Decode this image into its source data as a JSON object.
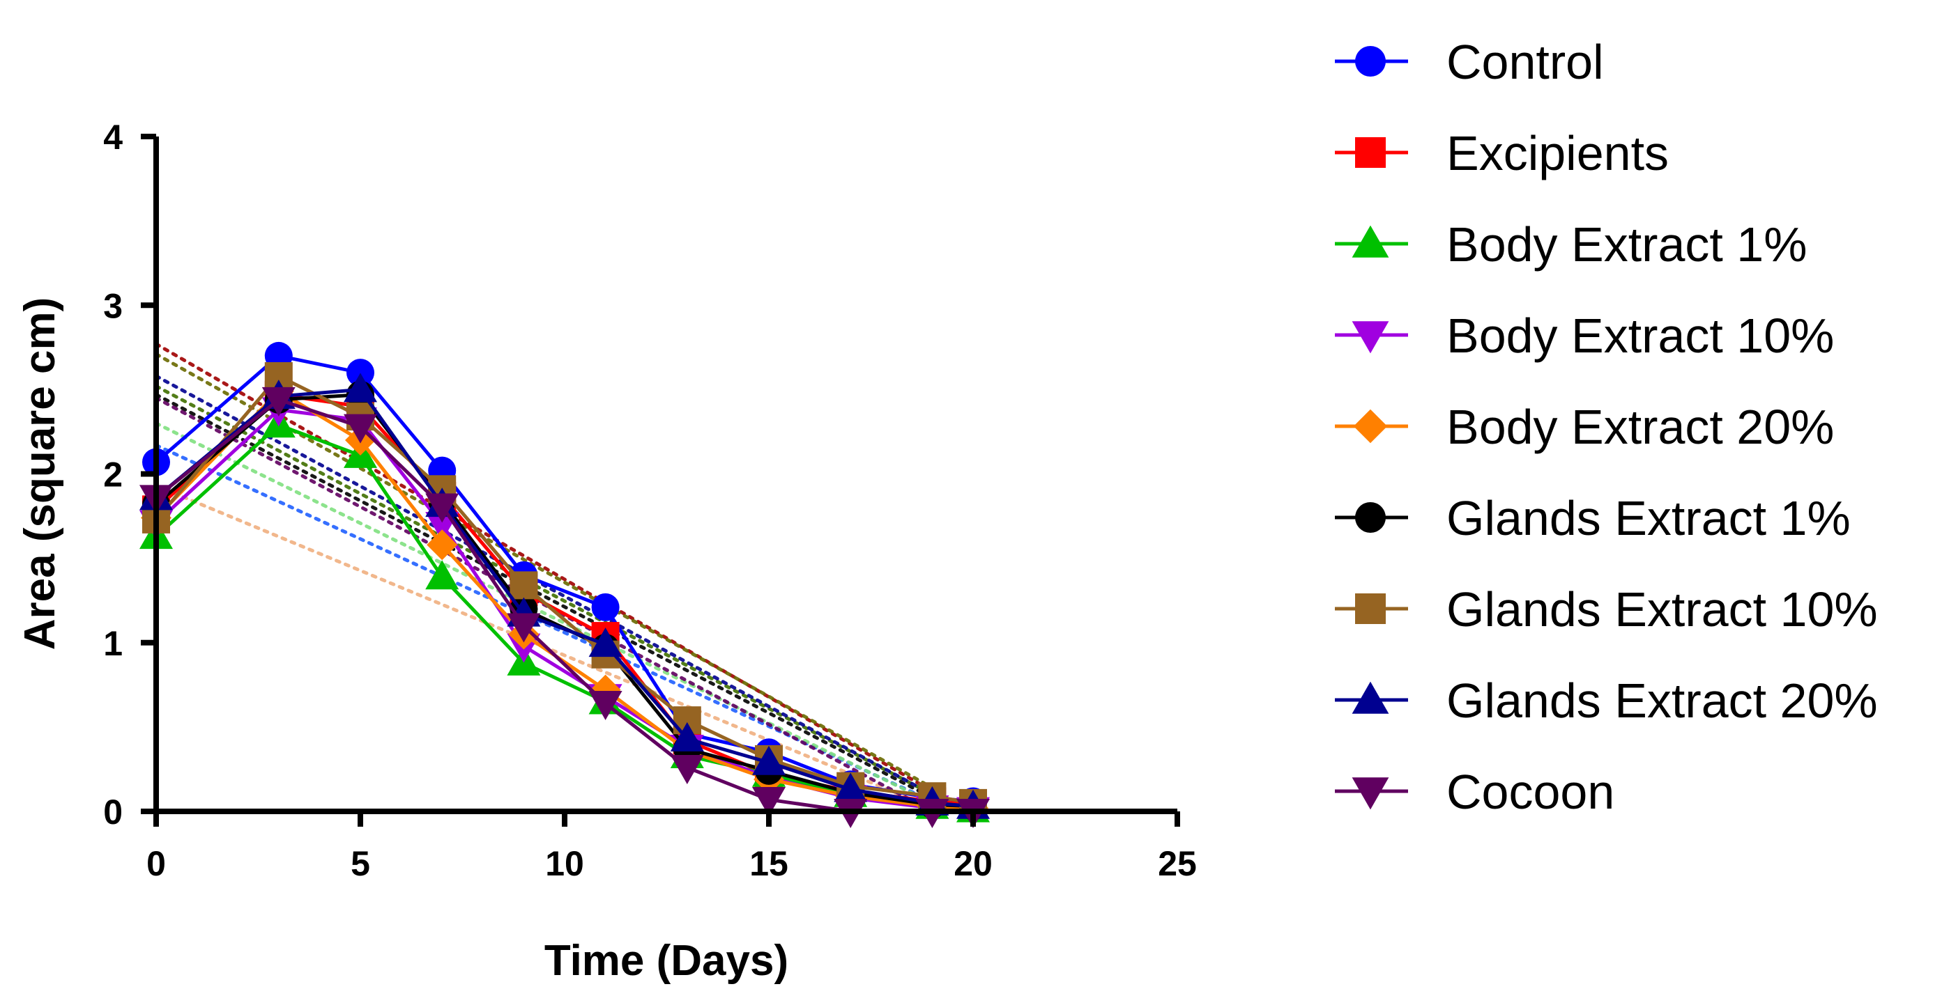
{
  "chart_data": {
    "type": "line",
    "title": "",
    "xlabel": "Time (Days)",
    "ylabel": "Area (square cm)",
    "xlim": [
      0,
      25
    ],
    "ylim": [
      0,
      4
    ],
    "xticks": [
      0,
      5,
      10,
      15,
      20,
      25
    ],
    "yticks": [
      0,
      1,
      2,
      3,
      4
    ],
    "grid": false,
    "legend_position": "right",
    "x": [
      0,
      3,
      5,
      7,
      9,
      11,
      13,
      15,
      17,
      19,
      20
    ],
    "series": [
      {
        "name": "Control",
        "color": "#0000ff",
        "marker": "circle",
        "values": [
          2.07,
          2.7,
          2.6,
          2.02,
          1.4,
          1.21,
          0.46,
          0.35,
          0.16,
          0.08,
          0.06
        ],
        "trend": {
          "start": [
            0,
            2.77
          ],
          "end": [
            19,
            0.12
          ]
        }
      },
      {
        "name": "Excipients",
        "color": "#ff0000",
        "marker": "square",
        "values": [
          1.79,
          2.47,
          2.4,
          1.87,
          1.3,
          1.04,
          0.42,
          0.22,
          0.12,
          0.06,
          0.04
        ],
        "trend": {
          "start": [
            0,
            2.52
          ],
          "end": [
            19,
            0.1
          ]
        }
      },
      {
        "name": "Body Extract 1%",
        "color": "#00c000",
        "marker": "triangle-up",
        "values": [
          1.63,
          2.29,
          2.11,
          1.39,
          0.88,
          0.65,
          0.33,
          0.22,
          0.1,
          0.03,
          0.01
        ],
        "trend": {
          "start": [
            0,
            2.17
          ],
          "end": [
            19,
            0.06
          ]
        }
      },
      {
        "name": "Body Extract 10%",
        "color": "#a000e0",
        "marker": "triangle-down",
        "values": [
          1.71,
          2.38,
          2.32,
          1.7,
          0.98,
          0.68,
          0.38,
          0.2,
          0.08,
          0.02,
          0.01
        ],
        "trend": {
          "start": [
            0,
            2.3
          ],
          "end": [
            19,
            0.05
          ]
        }
      },
      {
        "name": "Body Extract 20%",
        "color": "#ff8000",
        "marker": "diamond",
        "values": [
          1.74,
          2.49,
          2.2,
          1.58,
          1.05,
          0.72,
          0.36,
          0.19,
          0.09,
          0.03,
          0.02
        ],
        "trend": {
          "start": [
            0,
            1.93
          ],
          "end": [
            19,
            0.02
          ]
        }
      },
      {
        "name": "Glands Extract 1%",
        "color": "#000000",
        "marker": "circle",
        "values": [
          1.82,
          2.44,
          2.47,
          1.84,
          1.2,
          0.97,
          0.37,
          0.24,
          0.11,
          0.04,
          0.03
        ],
        "trend": {
          "start": [
            0,
            2.47
          ],
          "end": [
            19,
            0.08
          ]
        }
      },
      {
        "name": "Glands Extract 10%",
        "color": "#966422",
        "marker": "square",
        "values": [
          1.73,
          2.58,
          2.34,
          1.91,
          1.34,
          0.93,
          0.54,
          0.31,
          0.15,
          0.09,
          0.05
        ],
        "trend": {
          "start": [
            0,
            2.71
          ],
          "end": [
            19,
            0.14
          ]
        }
      },
      {
        "name": "Glands Extract 20%",
        "color": "#000090",
        "marker": "triangle-up",
        "values": [
          1.86,
          2.46,
          2.5,
          1.82,
          1.17,
          0.99,
          0.43,
          0.29,
          0.13,
          0.05,
          0.03
        ],
        "trend": {
          "start": [
            0,
            2.58
          ],
          "end": [
            19,
            0.1
          ]
        }
      },
      {
        "name": "Cocoon",
        "color": "#600060",
        "marker": "triangle-down",
        "values": [
          1.86,
          2.44,
          2.28,
          1.81,
          1.1,
          0.64,
          0.26,
          0.07,
          0.0,
          0.0,
          0.0
        ],
        "trend": {
          "start": [
            0,
            2.45
          ],
          "end": [
            19,
            0.0
          ]
        }
      }
    ],
    "trendline_colors": [
      "#a00000",
      "#407000",
      "#2060ff",
      "#80e080",
      "#f0b080",
      "#000000",
      "#6a6a00",
      "#000090",
      "#600060"
    ]
  }
}
